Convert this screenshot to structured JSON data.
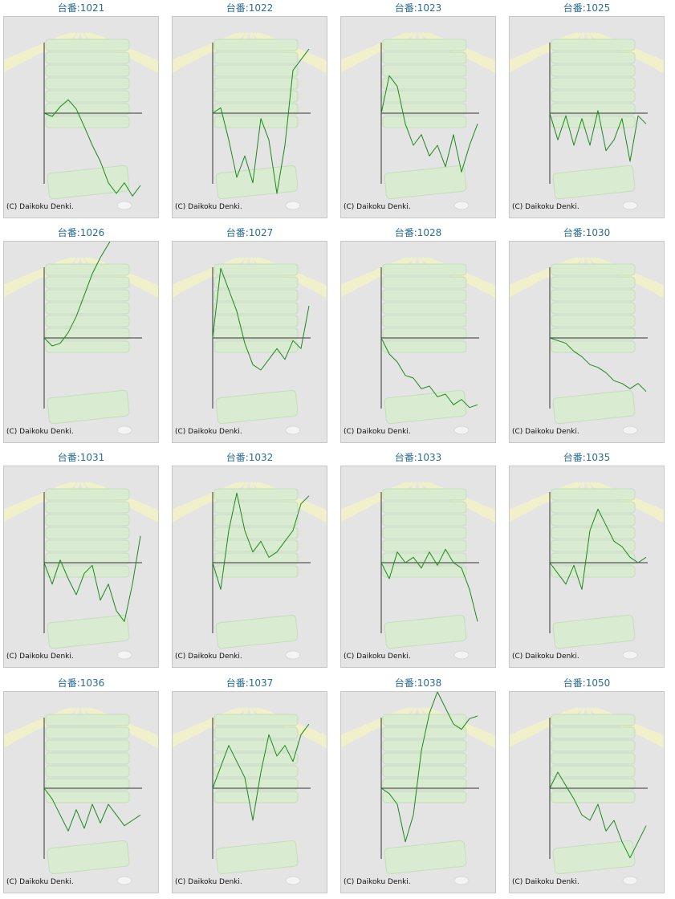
{
  "credit": "(C) Daikoku Denki.",
  "colors": {
    "line": "#1a8a1a",
    "axis": "#333333",
    "panel": "#e4e4e4",
    "title": "#2a6d96"
  },
  "chart_data": [
    {
      "type": "line",
      "title": "台番:1021",
      "y": [
        0,
        -6,
        12,
        25,
        8,
        -25,
        -60,
        -90,
        -130,
        -150,
        -130,
        -155,
        -135
      ]
    },
    {
      "type": "line",
      "title": "台番:1022",
      "y": [
        0,
        10,
        -50,
        -120,
        -80,
        -130,
        -10,
        -50,
        -150,
        -60,
        80,
        100,
        120
      ]
    },
    {
      "type": "line",
      "title": "台番:1023",
      "y": [
        0,
        70,
        50,
        -20,
        -60,
        -40,
        -80,
        -60,
        -100,
        -40,
        -110,
        -60,
        -20
      ]
    },
    {
      "type": "line",
      "title": "台番:1025",
      "y": [
        0,
        -50,
        -5,
        -60,
        -10,
        -60,
        5,
        -70,
        -50,
        -10,
        -90,
        -5,
        -20
      ]
    },
    {
      "type": "line",
      "title": "台番:1026",
      "y": [
        0,
        -15,
        -10,
        10,
        40,
        80,
        120,
        150,
        175,
        200,
        225,
        250,
        270
      ]
    },
    {
      "type": "line",
      "title": "台番:1027",
      "y": [
        0,
        130,
        90,
        50,
        -10,
        -50,
        -60,
        -40,
        -20,
        -40,
        -5,
        -20,
        60
      ]
    },
    {
      "type": "line",
      "title": "台番:1028",
      "y": [
        0,
        -30,
        -45,
        -70,
        -75,
        -95,
        -90,
        -110,
        -105,
        -125,
        -115,
        -130,
        -125
      ]
    },
    {
      "type": "line",
      "title": "台番:1030",
      "y": [
        0,
        -5,
        -10,
        -25,
        -35,
        -50,
        -55,
        -65,
        -80,
        -85,
        -95,
        -85,
        -100
      ]
    },
    {
      "type": "line",
      "title": "台番:1031",
      "y": [
        0,
        -40,
        5,
        -30,
        -60,
        -20,
        -5,
        -70,
        -40,
        -90,
        -110,
        -40,
        50
      ]
    },
    {
      "type": "line",
      "title": "台番:1032",
      "y": [
        0,
        -50,
        60,
        130,
        60,
        20,
        40,
        10,
        20,
        40,
        60,
        110,
        125
      ]
    },
    {
      "type": "line",
      "title": "台番:1033",
      "y": [
        0,
        -30,
        20,
        0,
        10,
        -10,
        20,
        -5,
        25,
        0,
        -10,
        -50,
        -110
      ]
    },
    {
      "type": "line",
      "title": "台番:1035",
      "y": [
        0,
        -20,
        -40,
        -5,
        -50,
        60,
        100,
        70,
        40,
        30,
        10,
        0,
        10
      ]
    },
    {
      "type": "line",
      "title": "台番:1036",
      "y": [
        0,
        -20,
        -50,
        -80,
        -40,
        -75,
        -30,
        -65,
        -30,
        -50,
        -70,
        -60,
        -50
      ]
    },
    {
      "type": "line",
      "title": "台番:1037",
      "y": [
        0,
        40,
        80,
        50,
        20,
        -60,
        30,
        100,
        60,
        80,
        50,
        100,
        120
      ]
    },
    {
      "type": "line",
      "title": "台番:1038",
      "y": [
        0,
        -10,
        -30,
        -100,
        -50,
        70,
        140,
        180,
        150,
        120,
        110,
        130,
        135
      ]
    },
    {
      "type": "line",
      "title": "台番:1050",
      "y": [
        0,
        30,
        5,
        -20,
        -50,
        -60,
        -30,
        -80,
        -60,
        -100,
        -130,
        -100,
        -70
      ]
    }
  ]
}
